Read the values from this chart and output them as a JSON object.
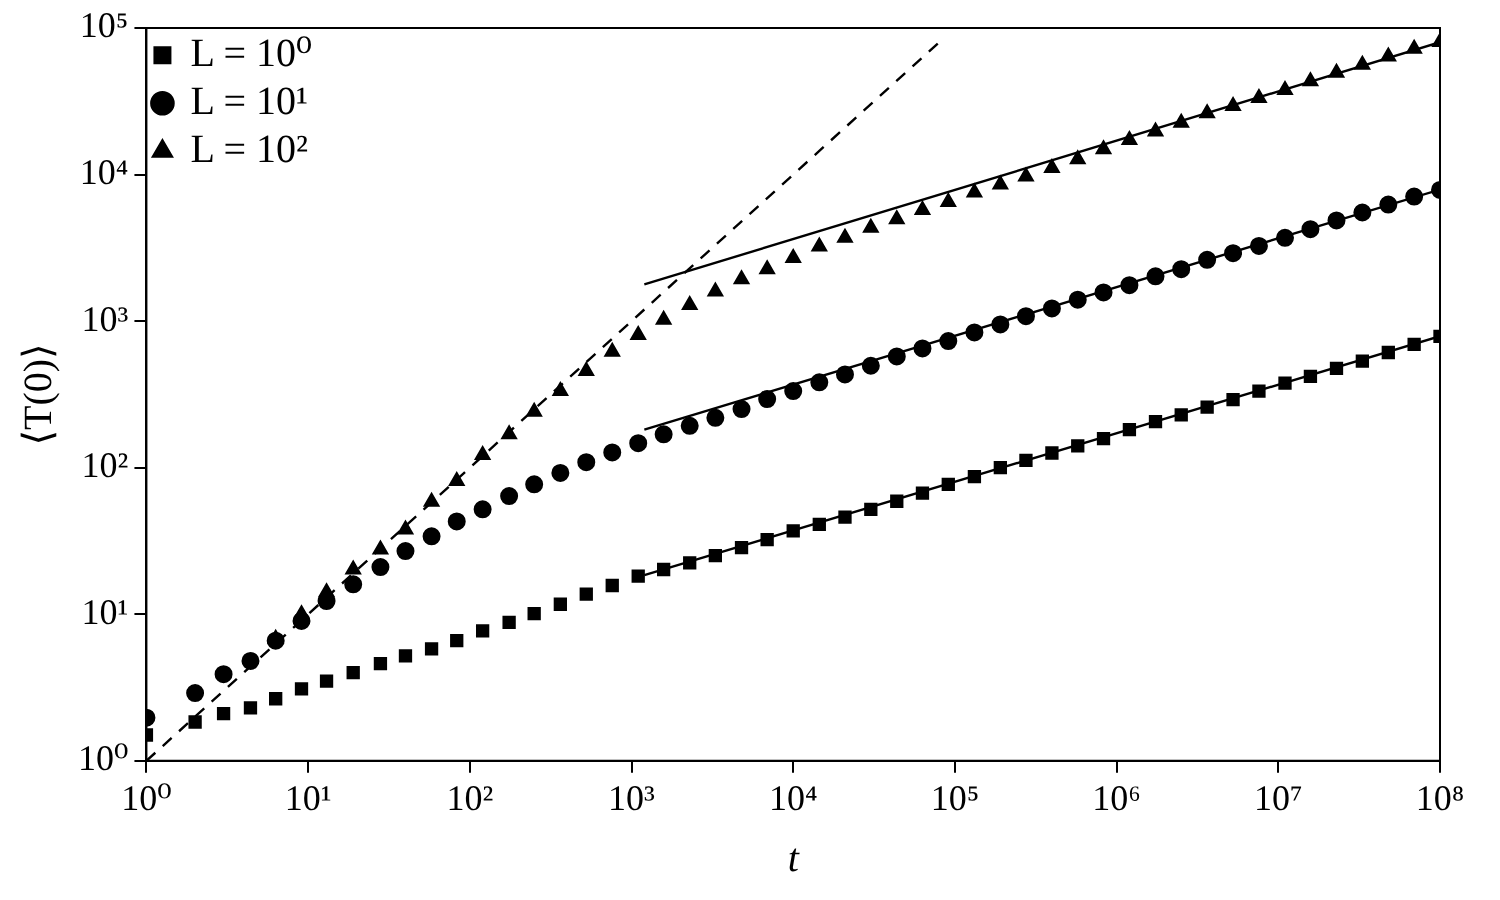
{
  "chart_data": {
    "type": "scatter",
    "xlabel": "t",
    "ylabel": "⟨T(0)⟩",
    "log": "xy",
    "grid": false,
    "legend": "top left",
    "xlim": [
      1,
      100000000
    ],
    "ylim": [
      1,
      100000
    ],
    "xticks": [
      {
        "value": 1,
        "label": "10⁰"
      },
      {
        "value": 10,
        "label": "10¹"
      },
      {
        "value": 100,
        "label": "10²"
      },
      {
        "value": 1000,
        "label": "10³"
      },
      {
        "value": 10000,
        "label": "10⁴"
      },
      {
        "value": 100000,
        "label": "10⁵"
      },
      {
        "value": 1000000,
        "label": "10⁶"
      },
      {
        "value": 10000000,
        "label": "10⁷"
      },
      {
        "value": 100000000,
        "label": "10⁸"
      }
    ],
    "yticks": [
      {
        "value": 1,
        "label": "10⁰"
      },
      {
        "value": 10,
        "label": "10¹"
      },
      {
        "value": 100,
        "label": "10²"
      },
      {
        "value": 1000,
        "label": "10³"
      },
      {
        "value": 10000,
        "label": "10⁴"
      },
      {
        "value": 100000,
        "label": "10⁵"
      }
    ],
    "series": [
      {
        "name": "L = 10⁰",
        "marker": "square",
        "color": "#000000",
        "x": [
          1,
          2,
          3,
          4.4,
          6.3,
          9.1,
          13,
          19,
          28,
          40,
          58,
          83,
          120,
          175,
          250,
          363,
          525,
          760,
          1100,
          1580,
          2290,
          3300,
          4790,
          6900,
          10000,
          14500,
          20900,
          30200,
          43700,
          63000,
          91000,
          132000,
          191000,
          275000,
          398000,
          575000,
          830000,
          1200000,
          1740000,
          2510000,
          3630000,
          5250000,
          7590000,
          11000000,
          15800000,
          22900000,
          33100000,
          47900000,
          69200000,
          100000000
        ],
        "values": [
          1.5,
          1.84,
          2.1,
          2.3,
          2.65,
          3.1,
          3.5,
          4.0,
          4.6,
          5.2,
          5.8,
          6.6,
          7.7,
          8.8,
          10.1,
          11.7,
          13.7,
          15.7,
          18.2,
          20.2,
          22.4,
          25.1,
          28.5,
          32.3,
          37,
          41,
          46,
          52,
          59,
          67,
          77,
          87,
          100,
          112,
          126,
          141,
          158,
          182,
          206,
          229,
          259,
          291,
          333,
          378,
          420,
          476,
          534,
          611,
          693,
          786
        ]
      },
      {
        "name": "L = 10¹",
        "marker": "circle",
        "color": "#000000",
        "x": [
          1,
          2,
          3,
          4.4,
          6.3,
          9.1,
          13,
          19,
          28,
          40,
          58,
          83,
          120,
          175,
          250,
          363,
          525,
          760,
          1100,
          1580,
          2290,
          3300,
          4790,
          6900,
          10000,
          14500,
          20900,
          30200,
          43700,
          63000,
          91000,
          132000,
          191000,
          275000,
          398000,
          575000,
          830000,
          1200000,
          1740000,
          2510000,
          3630000,
          5250000,
          7590000,
          11000000,
          15800000,
          22900000,
          33100000,
          47900000,
          69200000,
          100000000
        ],
        "values": [
          1.97,
          2.9,
          3.9,
          4.8,
          6.6,
          9.0,
          12.3,
          16,
          21,
          27,
          34,
          43,
          52,
          64,
          77,
          92,
          109,
          127,
          147,
          169,
          193,
          219,
          251,
          294,
          333,
          382,
          433,
          496,
          574,
          651,
          731,
          837,
          949,
          1080,
          1220,
          1400,
          1570,
          1760,
          2020,
          2260,
          2620,
          2910,
          3260,
          3700,
          4240,
          4860,
          5510,
          6240,
          7080,
          7860
        ]
      },
      {
        "name": "L = 10²",
        "marker": "triangle",
        "color": "#000000",
        "x": [
          6.3,
          9.1,
          13,
          19,
          28,
          40,
          58,
          83,
          120,
          175,
          250,
          363,
          525,
          760,
          1100,
          1580,
          2290,
          3300,
          4790,
          6900,
          10000,
          14500,
          20900,
          30200,
          43700,
          63000,
          91000,
          132000,
          191000,
          275000,
          398000,
          575000,
          830000,
          1200000,
          1740000,
          2510000,
          3630000,
          5250000,
          7590000,
          11000000,
          15800000,
          22900000,
          33100000,
          47900000,
          69200000,
          100000000
        ],
        "values": [
          6.8,
          10,
          14.1,
          20.2,
          27.6,
          37.8,
          58.6,
          81,
          122,
          169,
          241,
          333,
          456,
          618,
          803,
          1020,
          1290,
          1590,
          1930,
          2260,
          2700,
          3230,
          3700,
          4330,
          4960,
          5740,
          6510,
          7540,
          8550,
          9690,
          11100,
          12700,
          14900,
          17200,
          19700,
          22600,
          26200,
          29400,
          33300,
          37800,
          43300,
          49600,
          56200,
          63800,
          72300,
          80300
        ]
      },
      {
        "type": "line",
        "marker": "none",
        "line_style": "dashed",
        "color": "#000000",
        "x": [
          1,
          80000
        ],
        "values": [
          1,
          80000
        ]
      },
      {
        "type": "line",
        "marker": "none",
        "line_style": "solid",
        "color": "#000000",
        "x": [
          1200,
          100000000
        ],
        "values": [
          1780,
          80000
        ]
      },
      {
        "type": "line",
        "marker": "none",
        "line_style": "solid",
        "color": "#000000",
        "x": [
          1200,
          100000000
        ],
        "values": [
          182,
          7900
        ]
      },
      {
        "type": "line",
        "marker": "none",
        "line_style": "solid",
        "color": "#000000",
        "x": [
          1200,
          100000000
        ],
        "values": [
          18.5,
          790
        ]
      }
    ]
  }
}
